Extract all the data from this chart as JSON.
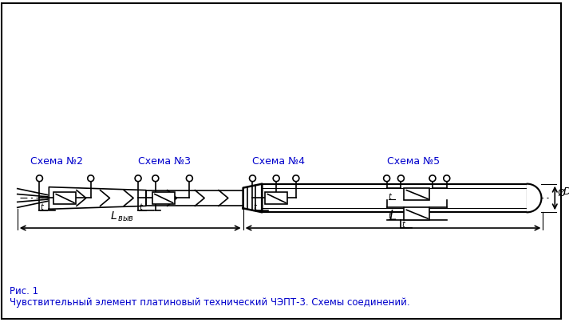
{
  "bg_color": "#ffffff",
  "border_color": "#000000",
  "line_color": "#000000",
  "blue_color": "#0000cc",
  "fig_width": 7.13,
  "fig_height": 4.04,
  "caption_line1": "Рис. 1",
  "caption_line2": "Чувствительный элемент платиновый технический ЧЭПТ-3. Схемы соединений.",
  "schema_labels": [
    "Схема №2",
    "Схема №3",
    "Схема №4",
    "Схема №5"
  ]
}
